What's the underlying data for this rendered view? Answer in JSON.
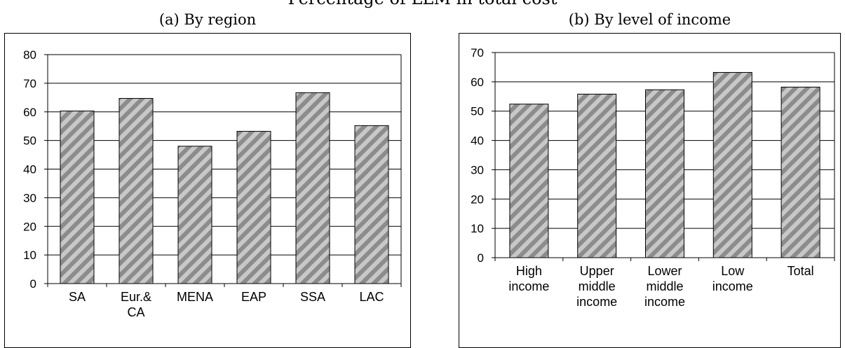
{
  "main_title": "Percentage of LLM in total cost",
  "chart_data": [
    {
      "type": "bar",
      "title": "(a) By region",
      "categories": [
        [
          "SA"
        ],
        [
          "Eur.&",
          "CA"
        ],
        [
          "MENA"
        ],
        [
          "EAP"
        ],
        [
          "SSA"
        ],
        [
          "LAC"
        ]
      ],
      "values": [
        60.3,
        64.7,
        48.0,
        53.2,
        66.7,
        55.2
      ],
      "ylim": [
        0,
        80
      ],
      "yticks": [
        0,
        10,
        20,
        30,
        40,
        50,
        60,
        70,
        80
      ],
      "grid": true,
      "bar_fill": "hatched-gray"
    },
    {
      "type": "bar",
      "title": "(b) By level of income",
      "categories": [
        [
          "High",
          "income"
        ],
        [
          "Upper",
          "middle",
          "income"
        ],
        [
          "Lower",
          "middle",
          "income"
        ],
        [
          "Low",
          "income"
        ],
        [
          "Total"
        ]
      ],
      "values": [
        52.4,
        55.8,
        57.3,
        63.2,
        58.2
      ],
      "ylim": [
        0,
        70
      ],
      "yticks": [
        0,
        10,
        20,
        30,
        40,
        50,
        60,
        70
      ],
      "grid": true,
      "bar_fill": "hatched-gray"
    }
  ],
  "colors": {
    "bar_base": "#c8c8c8",
    "bar_stripe": "#8c8c8c",
    "axis": "#000000",
    "grid": "#000000"
  }
}
